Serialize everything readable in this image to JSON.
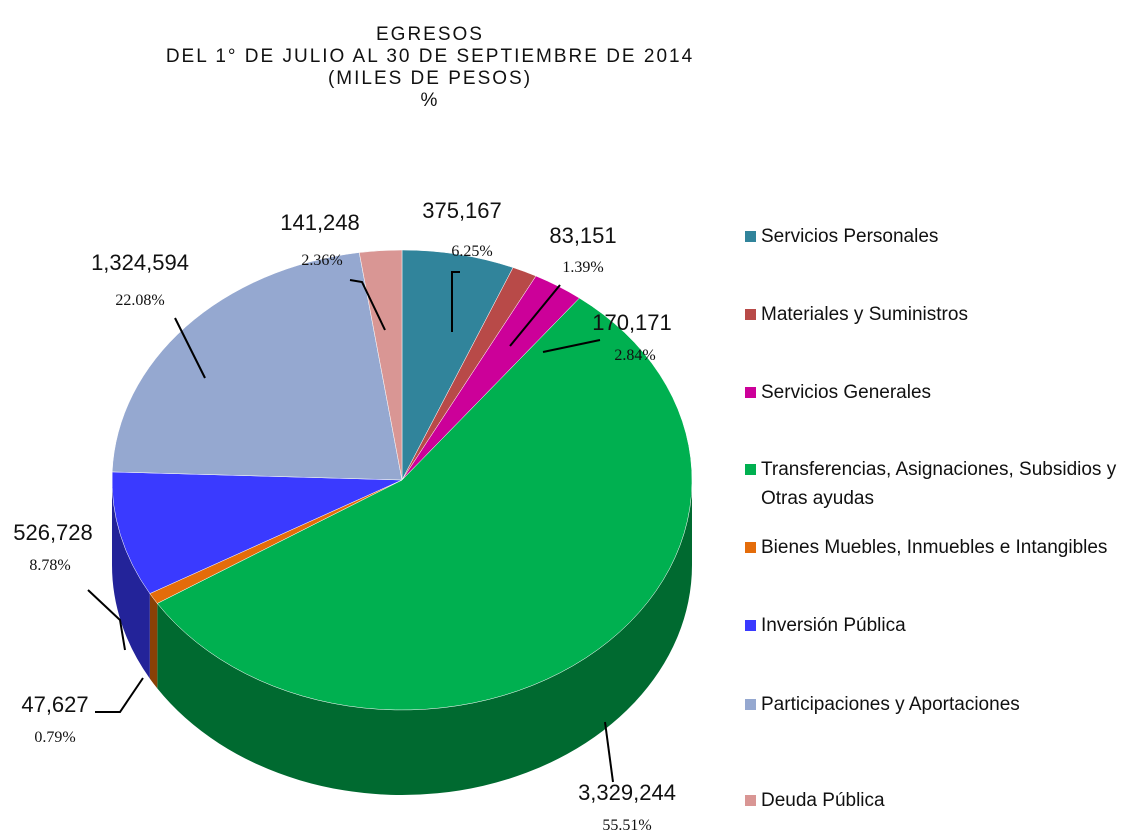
{
  "chart_data": {
    "type": "pie",
    "title": [
      "EGRESOS",
      "DEL 1° DE JULIO AL 30 DE SEPTIEMBRE DE 2014",
      "(MILES DE PESOS)",
      "%"
    ],
    "categories": [
      "Servicios Personales",
      "Materiales y Suministros",
      "Servicios Generales",
      "Transferencias, Asignaciones, Subsidios y Otras ayudas",
      "Bienes Muebles, Inmuebles e Intangibles",
      "Inversión Pública",
      "Participaciones y Aportaciones",
      "Deuda Pública"
    ],
    "values": [
      375167,
      83151,
      170171,
      3329244,
      47627,
      526728,
      1324594,
      141248
    ],
    "value_labels": [
      "375,167",
      "83,151",
      "170,171",
      "3,329,244",
      "47,627",
      "526,728",
      "1,324,594",
      "141,248"
    ],
    "percents": [
      6.25,
      1.39,
      2.84,
      55.51,
      0.79,
      8.78,
      22.08,
      2.36
    ],
    "percent_labels": [
      "6.25%",
      "1.39%",
      "2.84%",
      "55.51%",
      "0.79%",
      "8.78%",
      "22.08%",
      "2.36%"
    ],
    "colors": [
      "#31849b",
      "#b84a48",
      "#cc0099",
      "#00b050",
      "#e46c0a",
      "#3a3aff",
      "#95a8d0",
      "#d99694"
    ],
    "legend": "right"
  }
}
